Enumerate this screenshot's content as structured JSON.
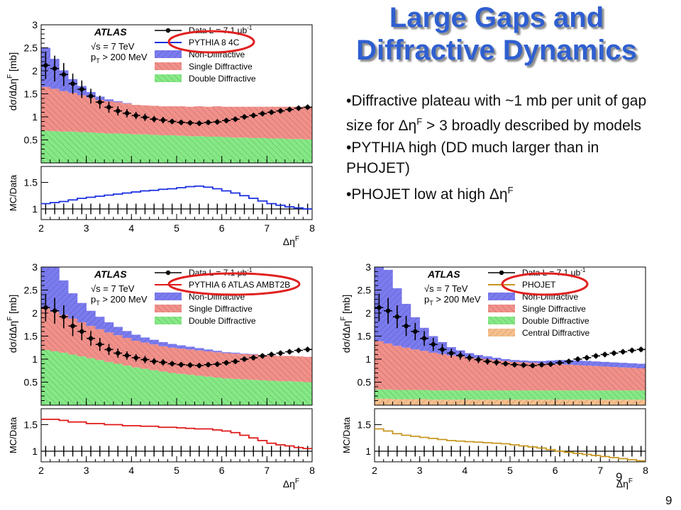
{
  "slide": {
    "title_line1": "Large Gaps and",
    "title_line2": "Diffractive Dynamics",
    "bullets": [
      {
        "text": "Diffractive plateau with ~1 mb per unit of gap size for Δη",
        "sup": "F",
        "tail": " > 3 broadly described by models"
      },
      {
        "text": "PYTHIA high (DD much larger than in PHOJET)",
        "sup": "",
        "tail": ""
      },
      {
        "text": "PHOJET low at high Δη",
        "sup": "F",
        "tail": ""
      }
    ],
    "page_number_inner": "9",
    "page_number": "9"
  },
  "colors": {
    "title": "#2f5fd0",
    "non_diffractive": "#7b7bf0",
    "single_diffractive": "#f2908a",
    "double_diffractive": "#85e985",
    "central_diffractive": "#f6bf8c",
    "pythia8": "#1a2ee0",
    "pythia6": "#e01818",
    "phojet": "#c8961e",
    "highlight_circle": "#e02020"
  },
  "chart_data": [
    {
      "type": "area",
      "experiment": "ATLAS",
      "energy_label": "√s = 7 TeV",
      "pt_label": "p",
      "pt_sub": "T",
      "pt_tail": " > 200 MeV",
      "ylabel": "dσ/dΔη",
      "ylabel_sup": "F",
      "ylabel_unit": " [mb]",
      "ratio_ylabel": "MC/Data",
      "xlabel": "Δη",
      "xlabel_sup": "F",
      "xlim": [
        2,
        8
      ],
      "ylim": [
        0,
        3
      ],
      "ratio_ylim": [
        0.8,
        1.8
      ],
      "x_ticks": [
        "2",
        "3",
        "4",
        "5",
        "6",
        "7",
        "8"
      ],
      "y_ticks": [
        "0.5",
        "1",
        "1.5",
        "2",
        "2.5",
        "3"
      ],
      "ratio_ticks": [
        "1",
        "1.5"
      ],
      "legend": [
        "Data L = 7.1 μb",
        "PYTHIA 8 4C",
        "Non-Diffractive",
        "Single Diffractive",
        "Double Diffractive"
      ],
      "legend_sup": "-1",
      "x": [
        2.0,
        2.2,
        2.4,
        2.6,
        2.8,
        3.0,
        3.2,
        3.4,
        3.6,
        3.8,
        4.0,
        4.2,
        4.4,
        4.6,
        4.8,
        5.0,
        5.2,
        5.4,
        5.6,
        5.8,
        6.0,
        6.2,
        6.4,
        6.6,
        6.8,
        7.0,
        7.2,
        7.4,
        7.6,
        7.8
      ],
      "data": [
        2.12,
        2.05,
        1.92,
        1.72,
        1.6,
        1.45,
        1.32,
        1.21,
        1.13,
        1.08,
        1.03,
        0.99,
        0.95,
        0.93,
        0.9,
        0.88,
        0.87,
        0.86,
        0.88,
        0.89,
        0.92,
        0.95,
        1.0,
        1.03,
        1.07,
        1.1,
        1.13,
        1.16,
        1.19,
        1.21
      ],
      "data_err": [
        0.3,
        0.28,
        0.25,
        0.22,
        0.19,
        0.16,
        0.14,
        0.12,
        0.1,
        0.09,
        0.08,
        0.08,
        0.07,
        0.07,
        0.06,
        0.06,
        0.06,
        0.06,
        0.06,
        0.06,
        0.06,
        0.06,
        0.06,
        0.06,
        0.06,
        0.06,
        0.06,
        0.06,
        0.06,
        0.06
      ],
      "stack": {
        "DD": [
          0.7,
          0.69,
          0.68,
          0.68,
          0.67,
          0.66,
          0.65,
          0.64,
          0.64,
          0.63,
          0.62,
          0.62,
          0.61,
          0.6,
          0.6,
          0.59,
          0.58,
          0.58,
          0.57,
          0.57,
          0.56,
          0.55,
          0.55,
          0.54,
          0.54,
          0.53,
          0.53,
          0.52,
          0.52,
          0.51
        ],
        "SD": [
          0.95,
          0.92,
          0.88,
          0.84,
          0.8,
          0.76,
          0.72,
          0.7,
          0.68,
          0.66,
          0.64,
          0.63,
          0.63,
          0.63,
          0.63,
          0.64,
          0.64,
          0.65,
          0.65,
          0.66,
          0.66,
          0.67,
          0.67,
          0.68,
          0.68,
          0.69,
          0.69,
          0.7,
          0.7,
          0.71
        ],
        "ND": [
          0.85,
          0.65,
          0.45,
          0.3,
          0.2,
          0.12,
          0.07,
          0.04,
          0.02,
          0.01,
          0,
          0,
          0,
          0,
          0,
          0,
          0,
          0,
          0,
          0,
          0,
          0,
          0,
          0,
          0,
          0,
          0,
          0,
          0,
          0
        ]
      },
      "mc_ratio": [
        1.1,
        1.12,
        1.14,
        1.17,
        1.2,
        1.22,
        1.24,
        1.26,
        1.28,
        1.3,
        1.32,
        1.34,
        1.35,
        1.37,
        1.38,
        1.4,
        1.42,
        1.43,
        1.41,
        1.38,
        1.34,
        1.3,
        1.25,
        1.2,
        1.15,
        1.1,
        1.07,
        1.04,
        1.02,
        1.0
      ],
      "mc_name": "PYTHIA 8 4C",
      "has_cd": false
    },
    {
      "type": "area",
      "experiment": "ATLAS",
      "energy_label": "√s = 7 TeV",
      "pt_label": "p",
      "pt_sub": "T",
      "pt_tail": " > 200 MeV",
      "ylabel": "dσ/dΔη",
      "ylabel_sup": "F",
      "ylabel_unit": " [mb]",
      "ratio_ylabel": "MC/Data",
      "xlabel": "Δη",
      "xlabel_sup": "F",
      "xlim": [
        2,
        8
      ],
      "ylim": [
        0,
        3
      ],
      "ratio_ylim": [
        0.8,
        1.8
      ],
      "x_ticks": [
        "2",
        "3",
        "4",
        "5",
        "6",
        "7",
        "8"
      ],
      "y_ticks": [
        "0.5",
        "1",
        "1.5",
        "2",
        "2.5",
        "3"
      ],
      "ratio_ticks": [
        "1",
        "1.5"
      ],
      "legend": [
        "Data L = 7.1 μb",
        "PYTHIA 6 ATLAS AMBT2B",
        "Non-Diffractive",
        "Single Diffractive",
        "Double Diffractive"
      ],
      "legend_sup": "-1",
      "x": [
        2.0,
        2.2,
        2.4,
        2.6,
        2.8,
        3.0,
        3.2,
        3.4,
        3.6,
        3.8,
        4.0,
        4.2,
        4.4,
        4.6,
        4.8,
        5.0,
        5.2,
        5.4,
        5.6,
        5.8,
        6.0,
        6.2,
        6.4,
        6.6,
        6.8,
        7.0,
        7.2,
        7.4,
        7.6,
        7.8
      ],
      "data": [
        2.12,
        2.05,
        1.92,
        1.72,
        1.6,
        1.45,
        1.32,
        1.21,
        1.13,
        1.08,
        1.03,
        0.99,
        0.95,
        0.93,
        0.9,
        0.88,
        0.87,
        0.86,
        0.88,
        0.89,
        0.92,
        0.95,
        1.0,
        1.03,
        1.07,
        1.1,
        1.13,
        1.16,
        1.19,
        1.21
      ],
      "data_err": [
        0.3,
        0.28,
        0.25,
        0.22,
        0.19,
        0.16,
        0.14,
        0.12,
        0.1,
        0.09,
        0.08,
        0.08,
        0.07,
        0.07,
        0.06,
        0.06,
        0.06,
        0.06,
        0.06,
        0.06,
        0.06,
        0.06,
        0.06,
        0.06,
        0.06,
        0.06,
        0.06,
        0.06,
        0.06,
        0.06
      ],
      "stack": {
        "DD": [
          1.2,
          1.17,
          1.14,
          1.1,
          1.06,
          1.02,
          0.98,
          0.94,
          0.9,
          0.86,
          0.82,
          0.79,
          0.76,
          0.73,
          0.7,
          0.68,
          0.66,
          0.64,
          0.62,
          0.6,
          0.58,
          0.57,
          0.56,
          0.55,
          0.54,
          0.53,
          0.52,
          0.52,
          0.51,
          0.5
        ],
        "SD": [
          0.9,
          0.86,
          0.82,
          0.78,
          0.74,
          0.7,
          0.67,
          0.64,
          0.62,
          0.6,
          0.58,
          0.57,
          0.56,
          0.55,
          0.55,
          0.55,
          0.55,
          0.55,
          0.55,
          0.55,
          0.55,
          0.55,
          0.55,
          0.55,
          0.55,
          0.55,
          0.55,
          0.55,
          0.55,
          0.55
        ],
        "ND": [
          1.3,
          1.0,
          0.75,
          0.55,
          0.42,
          0.33,
          0.27,
          0.22,
          0.18,
          0.15,
          0.13,
          0.11,
          0.1,
          0.09,
          0.08,
          0.07,
          0.06,
          0.05,
          0.04,
          0.03,
          0.02,
          0.02,
          0.01,
          0.01,
          0.0,
          0.0,
          0.0,
          0.0,
          0.0,
          0.0
        ]
      },
      "mc_ratio": [
        1.6,
        1.6,
        1.58,
        1.55,
        1.55,
        1.52,
        1.52,
        1.5,
        1.5,
        1.48,
        1.48,
        1.47,
        1.47,
        1.45,
        1.45,
        1.44,
        1.43,
        1.42,
        1.42,
        1.4,
        1.38,
        1.35,
        1.3,
        1.25,
        1.2,
        1.15,
        1.12,
        1.1,
        1.07,
        1.05
      ],
      "mc_name": "PYTHIA 6 ATLAS AMBT2B",
      "has_cd": false
    },
    {
      "type": "area",
      "experiment": "ATLAS",
      "energy_label": "√s = 7 TeV",
      "pt_label": "p",
      "pt_sub": "T",
      "pt_tail": " > 200 MeV",
      "ylabel": "dσ/dΔη",
      "ylabel_sup": "F",
      "ylabel_unit": " [mb]",
      "ratio_ylabel": "MC/Data",
      "xlabel": "Δη",
      "xlabel_sup": "F",
      "xlim": [
        2,
        8
      ],
      "ylim": [
        0,
        3
      ],
      "ratio_ylim": [
        0.8,
        1.8
      ],
      "x_ticks": [
        "2",
        "3",
        "4",
        "5",
        "6",
        "7",
        "8"
      ],
      "y_ticks": [
        "0.5",
        "1",
        "1.5",
        "2",
        "2.5",
        "3"
      ],
      "ratio_ticks": [
        "1",
        "1.5"
      ],
      "legend": [
        "Data L = 7.1 μb",
        "PHOJET",
        "Non-Diffractive",
        "Single Diffractive",
        "Double Diffractive",
        "Central Diffractive"
      ],
      "legend_sup": "-1",
      "x": [
        2.0,
        2.2,
        2.4,
        2.6,
        2.8,
        3.0,
        3.2,
        3.4,
        3.6,
        3.8,
        4.0,
        4.2,
        4.4,
        4.6,
        4.8,
        5.0,
        5.2,
        5.4,
        5.6,
        5.8,
        6.0,
        6.2,
        6.4,
        6.6,
        6.8,
        7.0,
        7.2,
        7.4,
        7.6,
        7.8
      ],
      "data": [
        2.12,
        2.05,
        1.92,
        1.72,
        1.6,
        1.45,
        1.32,
        1.21,
        1.13,
        1.08,
        1.03,
        0.99,
        0.95,
        0.93,
        0.9,
        0.88,
        0.87,
        0.86,
        0.88,
        0.89,
        0.92,
        0.95,
        1.0,
        1.03,
        1.07,
        1.1,
        1.13,
        1.16,
        1.19,
        1.21
      ],
      "data_err": [
        0.3,
        0.28,
        0.25,
        0.22,
        0.19,
        0.16,
        0.14,
        0.12,
        0.1,
        0.09,
        0.08,
        0.08,
        0.07,
        0.07,
        0.06,
        0.06,
        0.06,
        0.06,
        0.06,
        0.06,
        0.06,
        0.06,
        0.06,
        0.06,
        0.06,
        0.06,
        0.06,
        0.06,
        0.06,
        0.06
      ],
      "stack": {
        "CD": [
          0.14,
          0.14,
          0.13,
          0.13,
          0.13,
          0.13,
          0.12,
          0.12,
          0.12,
          0.12,
          0.12,
          0.12,
          0.12,
          0.12,
          0.12,
          0.12,
          0.12,
          0.12,
          0.12,
          0.12,
          0.12,
          0.12,
          0.12,
          0.12,
          0.12,
          0.12,
          0.12,
          0.12,
          0.12,
          0.12
        ],
        "DD": [
          0.2,
          0.2,
          0.2,
          0.2,
          0.2,
          0.2,
          0.2,
          0.2,
          0.2,
          0.2,
          0.2,
          0.2,
          0.2,
          0.2,
          0.2,
          0.2,
          0.2,
          0.2,
          0.2,
          0.2,
          0.2,
          0.2,
          0.2,
          0.2,
          0.2,
          0.2,
          0.2,
          0.2,
          0.2,
          0.2
        ],
        "SD": [
          1.05,
          1.0,
          0.96,
          0.92,
          0.88,
          0.85,
          0.82,
          0.79,
          0.76,
          0.74,
          0.72,
          0.7,
          0.68,
          0.66,
          0.64,
          0.62,
          0.61,
          0.6,
          0.59,
          0.58,
          0.57,
          0.56,
          0.55,
          0.54,
          0.53,
          0.52,
          0.51,
          0.5,
          0.49,
          0.48
        ],
        "ND": [
          2.0,
          1.6,
          1.25,
          0.95,
          0.7,
          0.5,
          0.36,
          0.26,
          0.18,
          0.13,
          0.09,
          0.07,
          0.06,
          0.05,
          0.04,
          0.04,
          0.04,
          0.04,
          0.05,
          0.07,
          0.09,
          0.1,
          0.1,
          0.1,
          0.1,
          0.1,
          0.1,
          0.1,
          0.1,
          0.1
        ]
      },
      "mc_ratio": [
        1.42,
        1.38,
        1.33,
        1.3,
        1.28,
        1.26,
        1.24,
        1.22,
        1.2,
        1.19,
        1.18,
        1.17,
        1.16,
        1.15,
        1.14,
        1.12,
        1.1,
        1.08,
        1.06,
        1.03,
        1.0,
        0.98,
        0.96,
        0.94,
        0.92,
        0.9,
        0.88,
        0.86,
        0.84,
        0.82
      ],
      "mc_name": "PHOJET",
      "has_cd": true
    }
  ]
}
